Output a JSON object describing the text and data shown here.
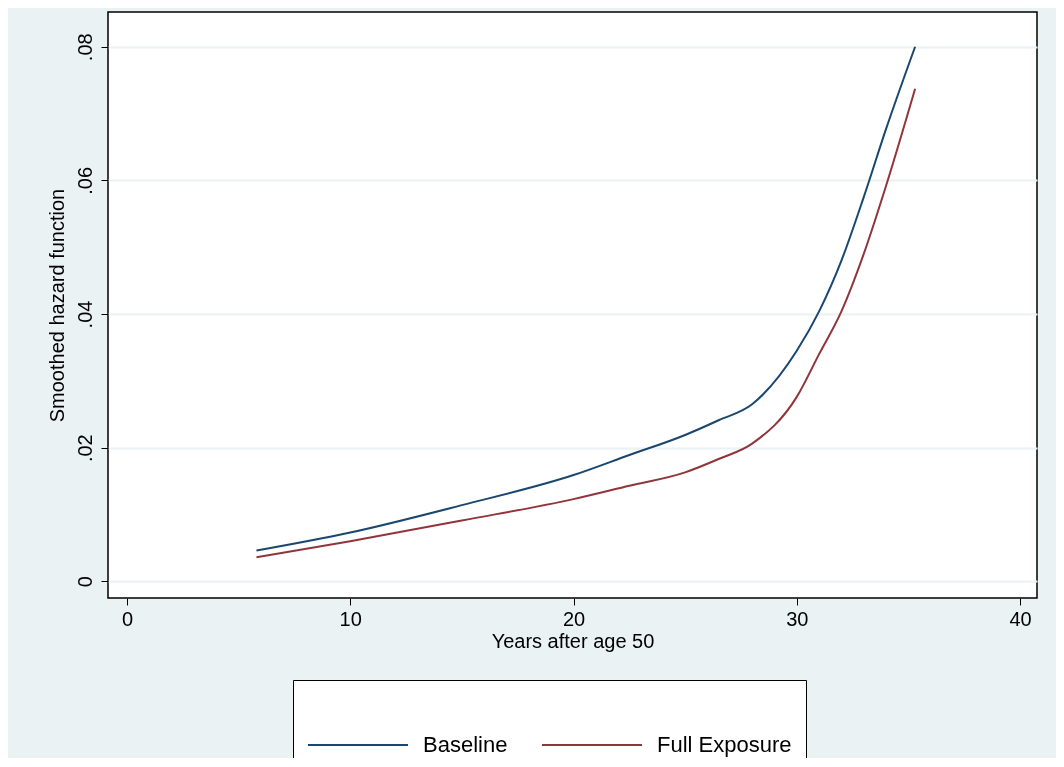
{
  "chart_data": {
    "type": "line",
    "xlabel": "Years after age 50",
    "ylabel": "Smoothed hazard function",
    "x": [
      5.8,
      10,
      15,
      20,
      22.5,
      25,
      26.5,
      28,
      30,
      31,
      32,
      33,
      34,
      35.3
    ],
    "series": [
      {
        "name": "Baseline",
        "color": "#1a476f",
        "values": [
          0.0046,
          0.0073,
          0.0114,
          0.0159,
          0.0189,
          0.0219,
          0.0241,
          0.0265,
          0.0345,
          0.0404,
          0.048,
          0.0575,
          0.0677,
          0.08
        ]
      },
      {
        "name": "Full Exposure",
        "color": "#90353b",
        "values": [
          0.0036,
          0.006,
          0.0091,
          0.0123,
          0.0143,
          0.0163,
          0.0183,
          0.0206,
          0.0276,
          0.034,
          0.0404,
          0.049,
          0.0592,
          0.0737
        ]
      }
    ],
    "xlim": [
      -0.85,
      40.76
    ],
    "xticks": [
      0,
      10,
      20,
      30,
      40
    ],
    "ylim": [
      -0.0025,
      0.0852
    ],
    "yticks": [
      {
        "value": 0,
        "label": "0"
      },
      {
        "value": 0.02,
        "label": ".02"
      },
      {
        "value": 0.04,
        "label": ".04"
      },
      {
        "value": 0.06,
        "label": ".06"
      },
      {
        "value": 0.08,
        "label": ".08"
      }
    ],
    "grid": "y",
    "legend": "bottom",
    "line_style": "solid",
    "marker": "none"
  }
}
